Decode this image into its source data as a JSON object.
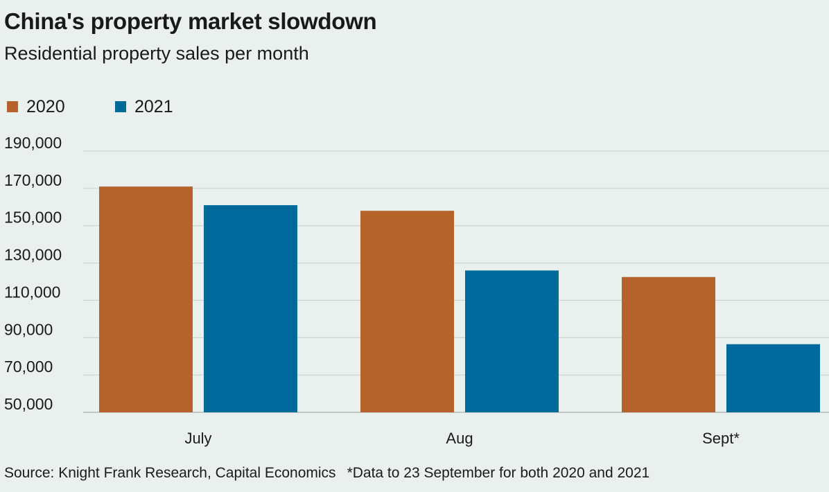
{
  "header": {
    "title": "China's property market slowdown",
    "subtitle": "Residential property sales per month"
  },
  "legend": [
    {
      "label": "2020",
      "color": "#b5632a"
    },
    {
      "label": "2021",
      "color": "#006a9c"
    }
  ],
  "footer": {
    "source": "Source: Knight Frank Research, Capital Economics",
    "note": "*Data to 23 September for both 2020 and 2021"
  },
  "chart_data": {
    "type": "bar",
    "categories": [
      "July",
      "Aug",
      "Sept*"
    ],
    "series": [
      {
        "name": "2020",
        "color": "#b5632a",
        "values": [
          171000,
          158000,
          122500
        ]
      },
      {
        "name": "2021",
        "color": "#006a9c",
        "values": [
          161000,
          126000,
          86500
        ]
      }
    ],
    "y_ticks": [
      "190,000",
      "170,000",
      "150,000",
      "130,000",
      "110,000",
      "90,000",
      "70,000",
      "50,000"
    ],
    "ylim": [
      50000,
      190000
    ],
    "grid": true,
    "legend_position": "top-left",
    "xlabel": "",
    "ylabel": "",
    "colors": {
      "grid": "#c9cfcc",
      "axis": "#9aa19e",
      "text": "#1a1a1a"
    }
  }
}
